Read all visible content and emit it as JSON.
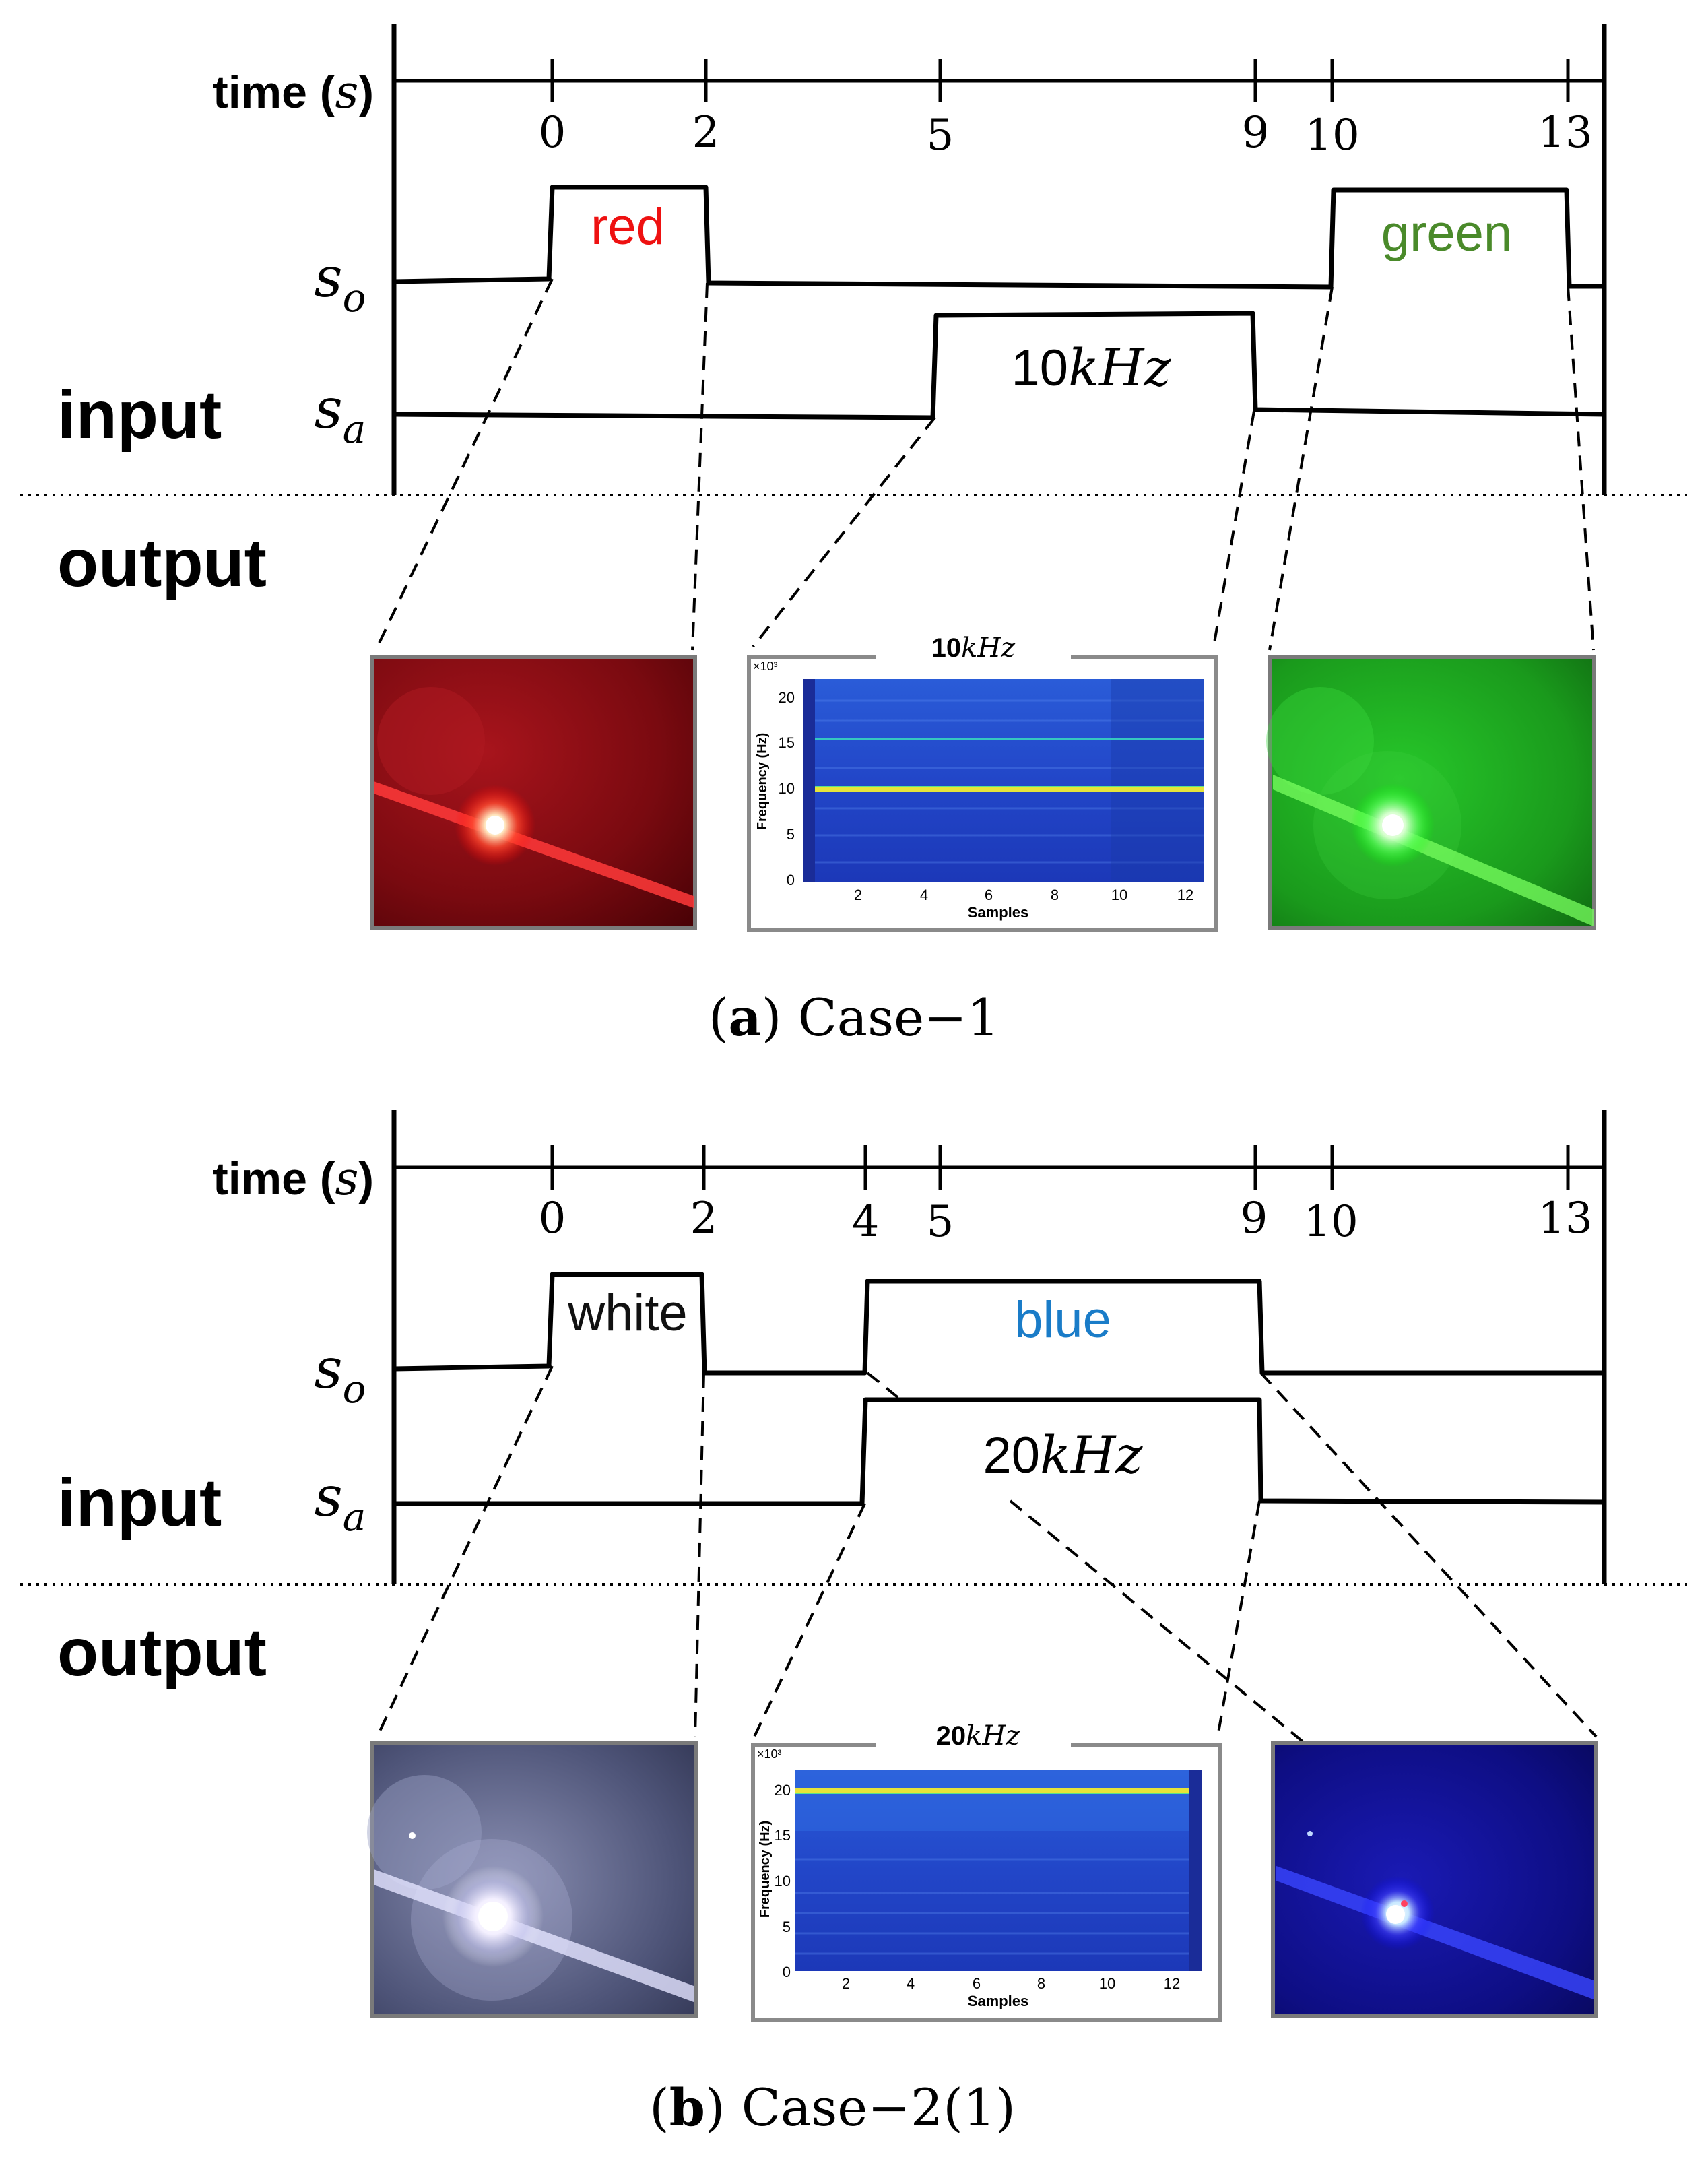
{
  "panels": [
    {
      "id": "a",
      "caption_letter": "a",
      "caption_text": "Case−1",
      "time_axis_label": "time (",
      "time_axis_unit": "s",
      "time_axis_close": ")",
      "ticks": [
        "0",
        "2",
        "5",
        "9",
        "10",
        "13"
      ],
      "so_label": "s",
      "so_sub": "o",
      "sa_label": "s",
      "sa_sub": "a",
      "input_label": "input",
      "output_label": "output",
      "so_pulses": [
        {
          "text": "red",
          "color": "#ee1111"
        },
        {
          "text": "green",
          "color": "#4a8a2a"
        }
      ],
      "sa_pulse": {
        "num": "10",
        "unit": "kHz"
      },
      "outputs": [
        {
          "kind": "photo",
          "color": "red"
        },
        {
          "kind": "spectrogram",
          "title_num": "10",
          "title_unit": "kHz",
          "exp": "×10³",
          "ylabel": "Frequency (Hz)",
          "xlabel": "Samples",
          "yticks": [
            "20",
            "15",
            "10",
            "5",
            "0"
          ],
          "xticks": [
            "2",
            "4",
            "6",
            "8",
            "10",
            "12"
          ],
          "bright_freq_khz": 10,
          "faint_freq_khz": 15
        },
        {
          "kind": "photo",
          "color": "green"
        }
      ]
    },
    {
      "id": "b",
      "caption_letter": "b",
      "caption_text": "Case−2(1)",
      "time_axis_label": "time (",
      "time_axis_unit": "s",
      "time_axis_close": ")",
      "ticks": [
        "0",
        "2",
        "4",
        "5",
        "9",
        "10",
        "13"
      ],
      "so_label": "s",
      "so_sub": "o",
      "sa_label": "s",
      "sa_sub": "a",
      "input_label": "input",
      "output_label": "output",
      "so_pulses": [
        {
          "text": "white",
          "color": "#111111"
        },
        {
          "text": "blue",
          "color": "#1a7cc8"
        }
      ],
      "sa_pulse": {
        "num": "20",
        "unit": "kHz"
      },
      "outputs": [
        {
          "kind": "photo",
          "color": "white"
        },
        {
          "kind": "spectrogram",
          "title_num": "20",
          "title_unit": "kHz",
          "exp": "×10³",
          "ylabel": "Frequency (Hz)",
          "xlabel": "Samples",
          "yticks": [
            "20",
            "15",
            "10",
            "5",
            "0"
          ],
          "xticks": [
            "2",
            "4",
            "6",
            "8",
            "10",
            "12"
          ],
          "bright_freq_khz": 20
        },
        {
          "kind": "photo",
          "color": "blue"
        }
      ]
    }
  ]
}
